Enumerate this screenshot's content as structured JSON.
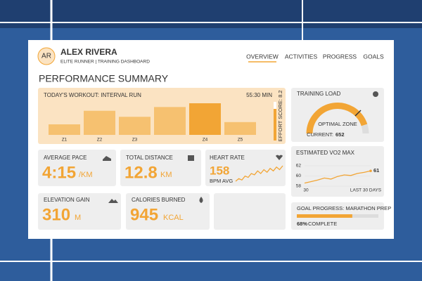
{
  "header": {
    "initials": "AR",
    "name": "ALEX RIVERA",
    "subtitle": "ELITE RUNNER | TRAINING DASHBOARD"
  },
  "nav": [
    "OVERVIEW",
    "ACTIVITIES",
    "PROGRESS",
    "GOALS"
  ],
  "title": "PERFORMANCE SUMMARY",
  "workout": {
    "title": "TODAY'S WORKOUT: INTERVAL RUN",
    "duration": "55:30 MIN",
    "effort": "EFFORT SCORE: 8.2",
    "zones": {
      "type": "bar",
      "categories": [
        "Z1",
        "Z2",
        "Z3",
        null,
        "Z4",
        "Z5"
      ],
      "values": [
        14,
        32,
        24,
        37,
        42,
        17
      ]
    }
  },
  "training_load": {
    "title": "TRAINING LOAD",
    "zone": "OPTIMAL ZONE",
    "current_label": "CURRENT:",
    "current": 652
  },
  "metrics": [
    {
      "label": "AVERAGE PACE",
      "value": "4:15",
      "unit": "/KM"
    },
    {
      "label": "TOTAL DISTANCE",
      "value": 12.8,
      "unit": "KM"
    },
    {
      "label": "HEART RATE",
      "value": 158,
      "unit": "BPM AVG",
      "trend": {
        "type": "line",
        "values": [
          3,
          5,
          4,
          7,
          6,
          9,
          8,
          11,
          9,
          12,
          10,
          13,
          11,
          14,
          12,
          15
        ]
      }
    },
    {
      "label": "ELEVATION GAIN",
      "value": 310,
      "unit": "M"
    },
    {
      "label": "CALORIES BURNED",
      "value": 945,
      "unit": "KCAL"
    }
  ],
  "vo2": {
    "type": "line",
    "title": "ESTIMATED VO2 MAX",
    "ylim": [
      58,
      62
    ],
    "yticks": [
      58,
      60,
      62
    ],
    "x_labels": [
      "30",
      "LAST 30 DAYS"
    ],
    "values": [
      58.6,
      58.9,
      59.2,
      59.6,
      59.4,
      59.9,
      60.2,
      60.1,
      60.5,
      60.7,
      61
    ]
  },
  "goal": {
    "title": "GOAL PROGRESS: MARATHON PREP",
    "percent": 68,
    "percent_label": "68%",
    "status": "COMPLETE"
  }
}
